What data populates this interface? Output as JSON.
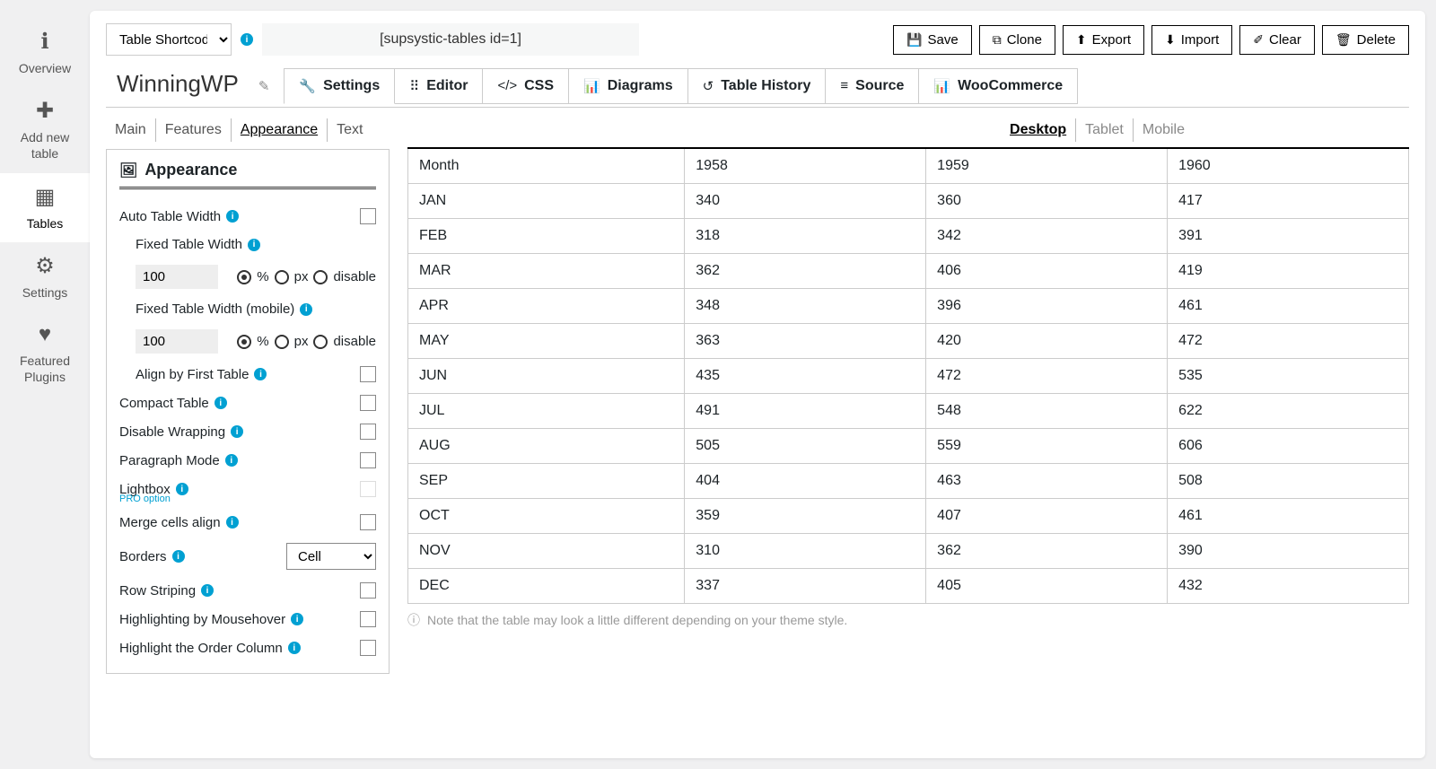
{
  "sidebar": {
    "items": [
      {
        "label": "Overview",
        "id": "overview"
      },
      {
        "label": "Add new table",
        "id": "add-new-table"
      },
      {
        "label": "Tables",
        "id": "tables"
      },
      {
        "label": "Settings",
        "id": "settings"
      },
      {
        "label": "Featured Plugins",
        "id": "featured-plugins"
      }
    ],
    "active": "tables"
  },
  "topbar": {
    "shortcode_select": "Table Shortcod",
    "shortcode_value": "[supsystic-tables id=1]"
  },
  "actions": {
    "save": "Save",
    "clone": "Clone",
    "export": "Export",
    "import": "Import",
    "clear": "Clear",
    "delete": "Delete"
  },
  "page_title": "WinningWP",
  "tabs": [
    {
      "label": "Settings"
    },
    {
      "label": "Editor"
    },
    {
      "label": "CSS"
    },
    {
      "label": "Diagrams"
    },
    {
      "label": "Table History"
    },
    {
      "label": "Source"
    },
    {
      "label": "WooCommerce"
    }
  ],
  "active_tab": 0,
  "subtabs": [
    "Main",
    "Features",
    "Appearance",
    "Text"
  ],
  "active_subtab": 2,
  "panel": {
    "title": "Appearance",
    "auto_width": "Auto Table Width",
    "fixed_width": "Fixed Table Width",
    "fixed_width_val": "100",
    "unit_percent": "%",
    "unit_px": "px",
    "unit_disable": "disable",
    "fixed_width_mobile": "Fixed Table Width (mobile)",
    "fixed_width_mobile_val": "100",
    "align_first": "Align by First Table",
    "compact": "Compact Table",
    "disable_wrap": "Disable Wrapping",
    "paragraph": "Paragraph Mode",
    "lightbox": "Lightbox",
    "pro_option": "PRO option",
    "merge_cells": "Merge cells align",
    "borders": "Borders",
    "borders_val": "Cell",
    "row_striping": "Row Striping",
    "highlight_mouse": "Highlighting by Mousehover",
    "highlight_order": "Highlight the Order Column"
  },
  "device_tabs": [
    "Desktop",
    "Tablet",
    "Mobile"
  ],
  "active_device": 0,
  "table": {
    "columns": [
      "Month",
      "1958",
      "1959",
      "1960"
    ],
    "rows": [
      [
        "JAN",
        "340",
        "360",
        "417"
      ],
      [
        "FEB",
        "318",
        "342",
        "391"
      ],
      [
        "MAR",
        "362",
        "406",
        "419"
      ],
      [
        "APR",
        "348",
        "396",
        "461"
      ],
      [
        "MAY",
        "363",
        "420",
        "472"
      ],
      [
        "JUN",
        "435",
        "472",
        "535"
      ],
      [
        "JUL",
        "491",
        "548",
        "622"
      ],
      [
        "AUG",
        "505",
        "559",
        "606"
      ],
      [
        "SEP",
        "404",
        "463",
        "508"
      ],
      [
        "OCT",
        "359",
        "407",
        "461"
      ],
      [
        "NOV",
        "310",
        "362",
        "390"
      ],
      [
        "DEC",
        "337",
        "405",
        "432"
      ]
    ]
  },
  "table_note": "Note that the table may look a little different depending on your theme style.",
  "colors": {
    "accent": "#00a0d2",
    "border": "#cccccc",
    "bg": "#f0f0f1",
    "text": "#1d2327"
  }
}
